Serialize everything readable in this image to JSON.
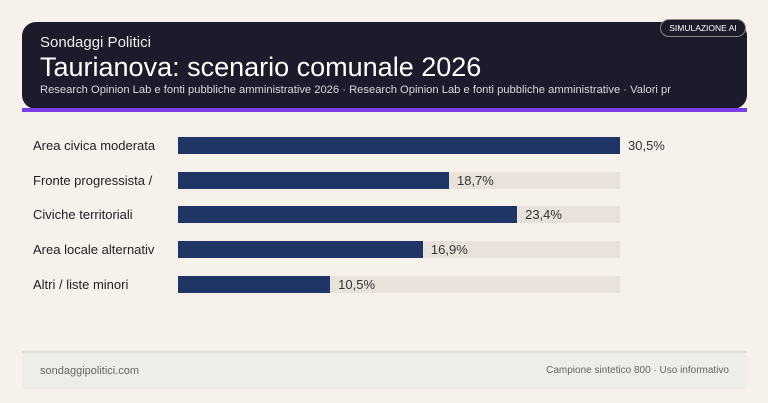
{
  "header": {
    "brand": "Sondaggi Politici",
    "title": "Taurianova: scenario comunale 2026",
    "subtitle": "Research Opinion Lab e fonti pubbliche amministrative 2026 · Research Opinion Lab e fonti pubbliche amministrative · Valori pr",
    "badge": "SIMULAZIONE AI"
  },
  "colors": {
    "bar": "#1e3566",
    "track": "#e8e2da",
    "accent": "#7b3de8",
    "header_bg": "#1b1b2b"
  },
  "chart_data": {
    "type": "bar",
    "orientation": "horizontal",
    "categories": [
      "Area civica moderata",
      "Fronte progressista /",
      "Civiche territoriali",
      "Area locale alternativ",
      "Altri / liste minori"
    ],
    "values": [
      30.5,
      18.7,
      23.4,
      16.9,
      10.5
    ],
    "value_labels": [
      "30,5%",
      "18,7%",
      "23,4%",
      "16,9%",
      "10,5%"
    ],
    "xlim": [
      0,
      30.5
    ],
    "unit": "%"
  },
  "footer": {
    "left": "sondaggipolitici.com",
    "right": "Campione sintetico 800 · Uso informativo"
  }
}
